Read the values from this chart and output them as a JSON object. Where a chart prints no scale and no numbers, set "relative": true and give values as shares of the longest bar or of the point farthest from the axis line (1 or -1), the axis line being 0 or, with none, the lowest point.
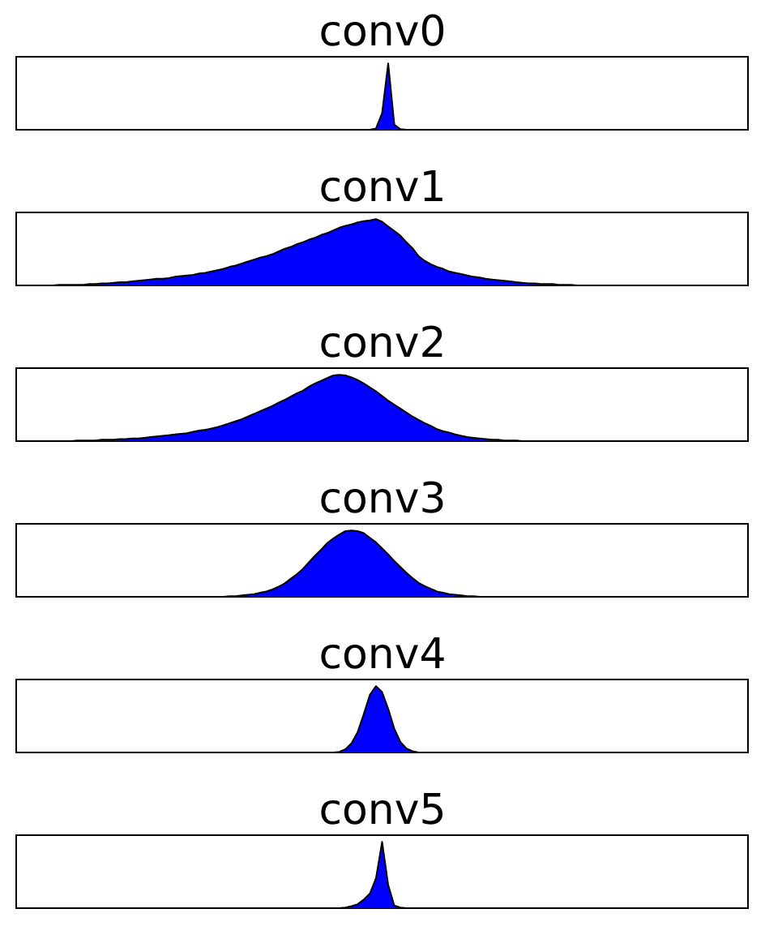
{
  "chart_data": [
    {
      "type": "area",
      "title": "conv0",
      "relative": true,
      "color": "#0000ff",
      "categories": [
        null,
        null,
        null,
        null,
        null,
        null,
        null,
        null,
        null,
        null,
        null,
        null,
        null,
        null,
        null,
        null,
        null,
        null,
        null,
        null,
        null,
        null,
        null,
        null,
        null,
        null,
        null,
        null,
        null,
        null,
        null,
        null,
        null,
        null,
        null,
        null,
        null,
        null,
        null,
        null,
        null,
        null,
        null,
        null,
        null,
        null,
        null,
        null,
        null,
        null,
        null,
        null,
        null,
        null,
        null,
        null,
        null,
        null,
        null,
        null,
        null,
        null,
        null,
        null,
        null,
        null,
        null,
        null,
        null,
        null,
        null,
        null,
        null,
        null,
        null,
        null,
        null,
        null,
        null,
        null,
        null,
        null,
        null,
        null,
        null,
        null,
        null,
        null,
        null,
        null,
        null,
        null,
        null,
        null,
        null,
        null,
        null,
        null,
        null,
        null,
        null,
        null,
        null,
        null,
        null,
        null,
        null,
        null,
        null,
        null,
        null,
        null,
        null,
        null,
        null,
        null,
        null,
        null,
        null,
        null,
        null
      ],
      "values": [
        0,
        0,
        0,
        0,
        0,
        0,
        0,
        0,
        0,
        0,
        0,
        0,
        0,
        0,
        0,
        0,
        0,
        0,
        0,
        0,
        0,
        0,
        0,
        0,
        0,
        0,
        0,
        0,
        0,
        0,
        0,
        0,
        0,
        0,
        0,
        0,
        0,
        0,
        0,
        0,
        0,
        0,
        0,
        0,
        0,
        0,
        0,
        0,
        0,
        0,
        0,
        0,
        0,
        0,
        0,
        0,
        0,
        0,
        0,
        0.02,
        0.25,
        1,
        0.08,
        0.01,
        0,
        0,
        0,
        0,
        0,
        0,
        0,
        0,
        0,
        0,
        0,
        0,
        0,
        0,
        0,
        0,
        0,
        0,
        0,
        0,
        0,
        0,
        0,
        0,
        0,
        0,
        0,
        0,
        0,
        0,
        0,
        0,
        0,
        0,
        0,
        0,
        0,
        0,
        0,
        0,
        0,
        0,
        0,
        0,
        0,
        0,
        0,
        0,
        0,
        0,
        0,
        0,
        0,
        0,
        0,
        0,
        0
      ]
    },
    {
      "type": "area",
      "title": "conv1",
      "relative": true,
      "color": "#0000ff",
      "categories": [
        null,
        null,
        null,
        null,
        null,
        null,
        null,
        null,
        null,
        null,
        null,
        null,
        null,
        null,
        null,
        null,
        null,
        null,
        null,
        null,
        null,
        null,
        null,
        null,
        null,
        null,
        null,
        null,
        null,
        null,
        null,
        null,
        null,
        null,
        null,
        null,
        null,
        null,
        null,
        null,
        null,
        null,
        null,
        null,
        null,
        null,
        null,
        null,
        null,
        null,
        null,
        null,
        null,
        null,
        null,
        null,
        null,
        null,
        null,
        null,
        null,
        null,
        null,
        null,
        null,
        null,
        null,
        null,
        null,
        null,
        null,
        null,
        null,
        null,
        null,
        null,
        null,
        null,
        null,
        null,
        null,
        null,
        null,
        null,
        null,
        null,
        null,
        null,
        null,
        null,
        null,
        null,
        null,
        null,
        null,
        null,
        null,
        null,
        null,
        null,
        null,
        null,
        null,
        null,
        null,
        null,
        null,
        null,
        null,
        null,
        null,
        null,
        null,
        null,
        null,
        null,
        null,
        null,
        null,
        null,
        null
      ],
      "values": [
        0,
        0,
        0,
        0,
        0,
        0,
        0,
        0.01,
        0.01,
        0.01,
        0.01,
        0.01,
        0.02,
        0.02,
        0.03,
        0.03,
        0.04,
        0.05,
        0.05,
        0.06,
        0.07,
        0.08,
        0.09,
        0.1,
        0.1,
        0.11,
        0.13,
        0.14,
        0.15,
        0.16,
        0.18,
        0.19,
        0.21,
        0.23,
        0.25,
        0.28,
        0.3,
        0.33,
        0.36,
        0.39,
        0.42,
        0.44,
        0.47,
        0.51,
        0.55,
        0.58,
        0.62,
        0.65,
        0.69,
        0.72,
        0.76,
        0.79,
        0.83,
        0.87,
        0.9,
        0.92,
        0.95,
        0.97,
        0.98,
        1,
        0.96,
        0.89,
        0.82,
        0.75,
        0.65,
        0.56,
        0.44,
        0.37,
        0.32,
        0.28,
        0.25,
        0.21,
        0.19,
        0.17,
        0.15,
        0.13,
        0.12,
        0.1,
        0.09,
        0.08,
        0.07,
        0.06,
        0.05,
        0.04,
        0.03,
        0.03,
        0.02,
        0.02,
        0.02,
        0.01,
        0.01,
        0.01,
        0,
        0,
        0,
        0,
        0,
        0,
        0,
        0,
        0,
        0,
        0,
        0,
        0,
        0,
        0,
        0,
        0,
        0,
        0,
        0,
        0,
        0,
        0,
        0,
        0,
        0,
        0,
        0,
        0
      ]
    },
    {
      "type": "area",
      "title": "conv2",
      "relative": true,
      "color": "#0000ff",
      "categories": [
        null,
        null,
        null,
        null,
        null,
        null,
        null,
        null,
        null,
        null,
        null,
        null,
        null,
        null,
        null,
        null,
        null,
        null,
        null,
        null,
        null,
        null,
        null,
        null,
        null,
        null,
        null,
        null,
        null,
        null,
        null,
        null,
        null,
        null,
        null,
        null,
        null,
        null,
        null,
        null,
        null,
        null,
        null,
        null,
        null,
        null,
        null,
        null,
        null,
        null,
        null,
        null,
        null,
        null,
        null,
        null,
        null,
        null,
        null,
        null,
        null,
        null,
        null,
        null,
        null,
        null,
        null,
        null,
        null,
        null,
        null,
        null,
        null,
        null,
        null,
        null,
        null,
        null,
        null,
        null,
        null,
        null,
        null,
        null,
        null,
        null,
        null,
        null,
        null,
        null,
        null,
        null,
        null,
        null,
        null,
        null,
        null,
        null,
        null,
        null,
        null,
        null,
        null,
        null,
        null,
        null,
        null,
        null,
        null,
        null,
        null,
        null,
        null,
        null,
        null,
        null,
        null,
        null,
        null,
        null,
        null
      ],
      "values": [
        0,
        0,
        0,
        0,
        0,
        0,
        0,
        0,
        0,
        0,
        0.01,
        0.01,
        0.01,
        0.01,
        0.02,
        0.02,
        0.02,
        0.03,
        0.03,
        0.04,
        0.04,
        0.05,
        0.06,
        0.07,
        0.08,
        0.09,
        0.1,
        0.11,
        0.12,
        0.14,
        0.16,
        0.17,
        0.19,
        0.21,
        0.24,
        0.27,
        0.3,
        0.33,
        0.37,
        0.41,
        0.45,
        0.49,
        0.53,
        0.58,
        0.62,
        0.67,
        0.72,
        0.76,
        0.82,
        0.87,
        0.91,
        0.95,
        0.99,
        1,
        0.99,
        0.96,
        0.92,
        0.87,
        0.81,
        0.75,
        0.68,
        0.61,
        0.55,
        0.49,
        0.43,
        0.37,
        0.32,
        0.27,
        0.23,
        0.18,
        0.15,
        0.13,
        0.1,
        0.08,
        0.06,
        0.05,
        0.04,
        0.03,
        0.02,
        0.02,
        0.01,
        0.01,
        0.01,
        0,
        0,
        0,
        0,
        0,
        0,
        0,
        0,
        0,
        0,
        0,
        0,
        0,
        0,
        0,
        0,
        0,
        0,
        0,
        0,
        0,
        0,
        0,
        0,
        0,
        0,
        0,
        0,
        0,
        0,
        0,
        0,
        0,
        0,
        0,
        0,
        0,
        0
      ]
    },
    {
      "type": "area",
      "title": "conv3",
      "relative": true,
      "color": "#0000ff",
      "categories": [
        null,
        null,
        null,
        null,
        null,
        null,
        null,
        null,
        null,
        null,
        null,
        null,
        null,
        null,
        null,
        null,
        null,
        null,
        null,
        null,
        null,
        null,
        null,
        null,
        null,
        null,
        null,
        null,
        null,
        null,
        null,
        null,
        null,
        null,
        null,
        null,
        null,
        null,
        null,
        null,
        null,
        null,
        null,
        null,
        null,
        null,
        null,
        null,
        null,
        null,
        null,
        null,
        null,
        null,
        null,
        null,
        null,
        null,
        null,
        null,
        null,
        null,
        null,
        null,
        null,
        null,
        null,
        null,
        null,
        null,
        null,
        null,
        null,
        null,
        null,
        null,
        null,
        null,
        null,
        null,
        null,
        null,
        null,
        null,
        null,
        null,
        null,
        null,
        null,
        null,
        null,
        null,
        null,
        null,
        null,
        null,
        null,
        null,
        null,
        null,
        null,
        null,
        null,
        null,
        null,
        null,
        null,
        null,
        null,
        null,
        null,
        null,
        null,
        null,
        null,
        null,
        null,
        null,
        null,
        null,
        null
      ],
      "values": [
        0,
        0,
        0,
        0,
        0,
        0,
        0,
        0,
        0,
        0,
        0,
        0,
        0,
        0,
        0,
        0,
        0,
        0,
        0,
        0,
        0,
        0,
        0,
        0,
        0,
        0,
        0,
        0,
        0,
        0,
        0,
        0,
        0,
        0,
        0,
        0.01,
        0.01,
        0.02,
        0.03,
        0.04,
        0.06,
        0.08,
        0.11,
        0.15,
        0.2,
        0.27,
        0.34,
        0.42,
        0.52,
        0.62,
        0.71,
        0.81,
        0.88,
        0.94,
        0.99,
        1,
        0.99,
        0.96,
        0.89,
        0.82,
        0.73,
        0.64,
        0.54,
        0.45,
        0.36,
        0.28,
        0.21,
        0.16,
        0.12,
        0.08,
        0.06,
        0.04,
        0.03,
        0.02,
        0.01,
        0.01,
        0,
        0,
        0,
        0,
        0,
        0,
        0,
        0,
        0,
        0,
        0,
        0,
        0,
        0,
        0,
        0,
        0,
        0,
        0,
        0,
        0,
        0,
        0,
        0,
        0,
        0,
        0,
        0,
        0,
        0,
        0,
        0,
        0,
        0,
        0,
        0,
        0,
        0,
        0,
        0,
        0,
        0,
        0,
        0,
        0
      ]
    },
    {
      "type": "area",
      "title": "conv4",
      "relative": true,
      "color": "#0000ff",
      "categories": [
        null,
        null,
        null,
        null,
        null,
        null,
        null,
        null,
        null,
        null,
        null,
        null,
        null,
        null,
        null,
        null,
        null,
        null,
        null,
        null,
        null,
        null,
        null,
        null,
        null,
        null,
        null,
        null,
        null,
        null,
        null,
        null,
        null,
        null,
        null,
        null,
        null,
        null,
        null,
        null,
        null,
        null,
        null,
        null,
        null,
        null,
        null,
        null,
        null,
        null,
        null,
        null,
        null,
        null,
        null,
        null,
        null,
        null,
        null,
        null,
        null,
        null,
        null,
        null,
        null,
        null,
        null,
        null,
        null,
        null,
        null,
        null,
        null,
        null,
        null,
        null,
        null,
        null,
        null,
        null,
        null,
        null,
        null,
        null,
        null,
        null,
        null,
        null,
        null,
        null,
        null,
        null,
        null,
        null,
        null,
        null,
        null,
        null,
        null,
        null,
        null,
        null,
        null,
        null,
        null,
        null,
        null,
        null,
        null,
        null,
        null,
        null,
        null,
        null,
        null,
        null,
        null,
        null,
        null,
        null,
        null
      ],
      "values": [
        0,
        0,
        0,
        0,
        0,
        0,
        0,
        0,
        0,
        0,
        0,
        0,
        0,
        0,
        0,
        0,
        0,
        0,
        0,
        0,
        0,
        0,
        0,
        0,
        0,
        0,
        0,
        0,
        0,
        0,
        0,
        0,
        0,
        0,
        0,
        0,
        0,
        0,
        0,
        0,
        0,
        0,
        0,
        0,
        0,
        0,
        0,
        0,
        0,
        0,
        0,
        0,
        0,
        0.01,
        0.05,
        0.14,
        0.31,
        0.58,
        0.87,
        1,
        0.91,
        0.66,
        0.36,
        0.16,
        0.06,
        0.02,
        0,
        0,
        0,
        0,
        0,
        0,
        0,
        0,
        0,
        0,
        0,
        0,
        0,
        0,
        0,
        0,
        0,
        0,
        0,
        0,
        0,
        0,
        0,
        0,
        0,
        0,
        0,
        0,
        0,
        0,
        0,
        0,
        0,
        0,
        0,
        0,
        0,
        0,
        0,
        0,
        0,
        0,
        0,
        0,
        0,
        0,
        0,
        0,
        0,
        0,
        0,
        0,
        0,
        0,
        0
      ]
    },
    {
      "type": "area",
      "title": "conv5",
      "relative": true,
      "color": "#0000ff",
      "categories": [
        null,
        null,
        null,
        null,
        null,
        null,
        null,
        null,
        null,
        null,
        null,
        null,
        null,
        null,
        null,
        null,
        null,
        null,
        null,
        null,
        null,
        null,
        null,
        null,
        null,
        null,
        null,
        null,
        null,
        null,
        null,
        null,
        null,
        null,
        null,
        null,
        null,
        null,
        null,
        null,
        null,
        null,
        null,
        null,
        null,
        null,
        null,
        null,
        null,
        null,
        null,
        null,
        null,
        null,
        null,
        null,
        null,
        null,
        null,
        null,
        null,
        null,
        null,
        null,
        null,
        null,
        null,
        null,
        null,
        null,
        null,
        null,
        null,
        null,
        null,
        null,
        null,
        null,
        null,
        null,
        null,
        null,
        null,
        null,
        null,
        null,
        null,
        null,
        null,
        null,
        null,
        null,
        null,
        null,
        null,
        null,
        null,
        null,
        null,
        null,
        null,
        null,
        null,
        null,
        null,
        null,
        null,
        null,
        null,
        null,
        null,
        null,
        null,
        null,
        null,
        null,
        null,
        null,
        null,
        null,
        null
      ],
      "values": [
        0,
        0,
        0,
        0,
        0,
        0,
        0,
        0,
        0,
        0,
        0,
        0,
        0,
        0,
        0,
        0,
        0,
        0,
        0,
        0,
        0,
        0,
        0,
        0,
        0,
        0,
        0,
        0,
        0,
        0,
        0,
        0,
        0,
        0,
        0,
        0,
        0,
        0,
        0,
        0,
        0,
        0,
        0,
        0,
        0,
        0,
        0,
        0,
        0,
        0,
        0,
        0,
        0,
        0,
        0.01,
        0.03,
        0.06,
        0.13,
        0.22,
        0.45,
        1,
        0.35,
        0.04,
        0.01,
        0,
        0,
        0,
        0,
        0,
        0,
        0,
        0,
        0,
        0,
        0,
        0,
        0,
        0,
        0,
        0,
        0,
        0,
        0,
        0,
        0,
        0,
        0,
        0,
        0,
        0,
        0,
        0,
        0,
        0,
        0,
        0,
        0,
        0,
        0,
        0,
        0,
        0,
        0,
        0,
        0,
        0,
        0,
        0,
        0,
        0,
        0,
        0,
        0,
        0,
        0,
        0,
        0,
        0,
        0,
        0,
        0
      ]
    }
  ]
}
